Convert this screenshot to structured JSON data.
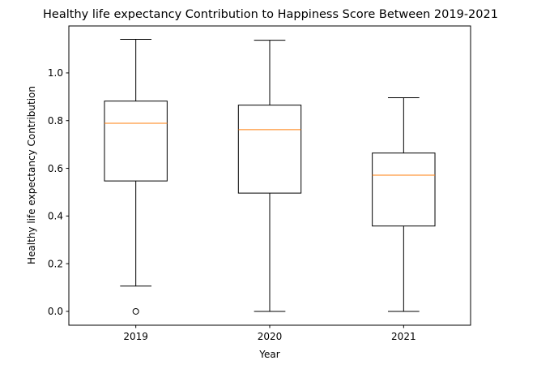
{
  "chart_data": {
    "type": "box",
    "title": "Healthy life expectancy Contribution to Happiness Score Between 2019-2021",
    "xlabel": "Year",
    "ylabel": "Healthy life expectancy Contribution",
    "categories": [
      "2019",
      "2020",
      "2021"
    ],
    "ylim": [
      -0.058,
      1.197
    ],
    "yticks": [
      0.0,
      0.2,
      0.4,
      0.6,
      0.8,
      1.0
    ],
    "ytick_labels": [
      "0.0",
      "0.2",
      "0.4",
      "0.6",
      "0.8",
      "1.0"
    ],
    "boxes": [
      {
        "category": "2019",
        "whisker_low": 0.106,
        "q1": 0.547,
        "median": 0.789,
        "q3": 0.882,
        "whisker_high": 1.141,
        "outliers": [
          0.0
        ]
      },
      {
        "category": "2020",
        "whisker_low": 0.0,
        "q1": 0.496,
        "median": 0.762,
        "q3": 0.865,
        "whisker_high": 1.137,
        "outliers": []
      },
      {
        "category": "2021",
        "whisker_low": 0.0,
        "q1": 0.358,
        "median": 0.571,
        "q3": 0.664,
        "whisker_high": 0.896,
        "outliers": []
      }
    ],
    "grid": false,
    "colors": {
      "box": "#000000",
      "median": "#ff7f0e",
      "background": "#ffffff"
    }
  }
}
